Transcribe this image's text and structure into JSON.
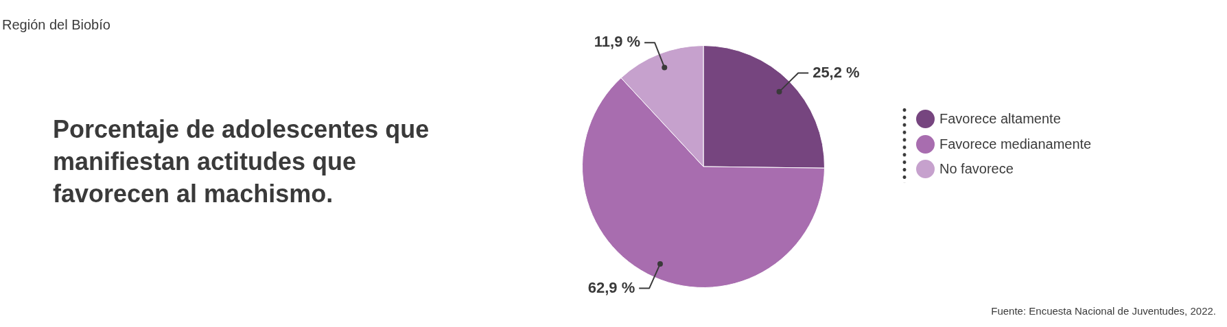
{
  "chart_data": {
    "type": "pie",
    "subtitle": "Región del Biobío",
    "title": "Porcentaje de adolescentes que manifiestan actitudes que favorecen al machismo.",
    "categories": [
      "Favorece altamente",
      "Favorece medianamente",
      "No favorece"
    ],
    "values": [
      25.2,
      62.9,
      11.9
    ],
    "colors": [
      "#76457f",
      "#a86daf",
      "#c6a1cd"
    ],
    "value_labels": [
      "25,2 %",
      "62,9 %",
      "11,9 %"
    ],
    "legend": "right",
    "annotations": [
      "Fuente: Encuesta Nacional de Juventudes, 2022."
    ]
  }
}
